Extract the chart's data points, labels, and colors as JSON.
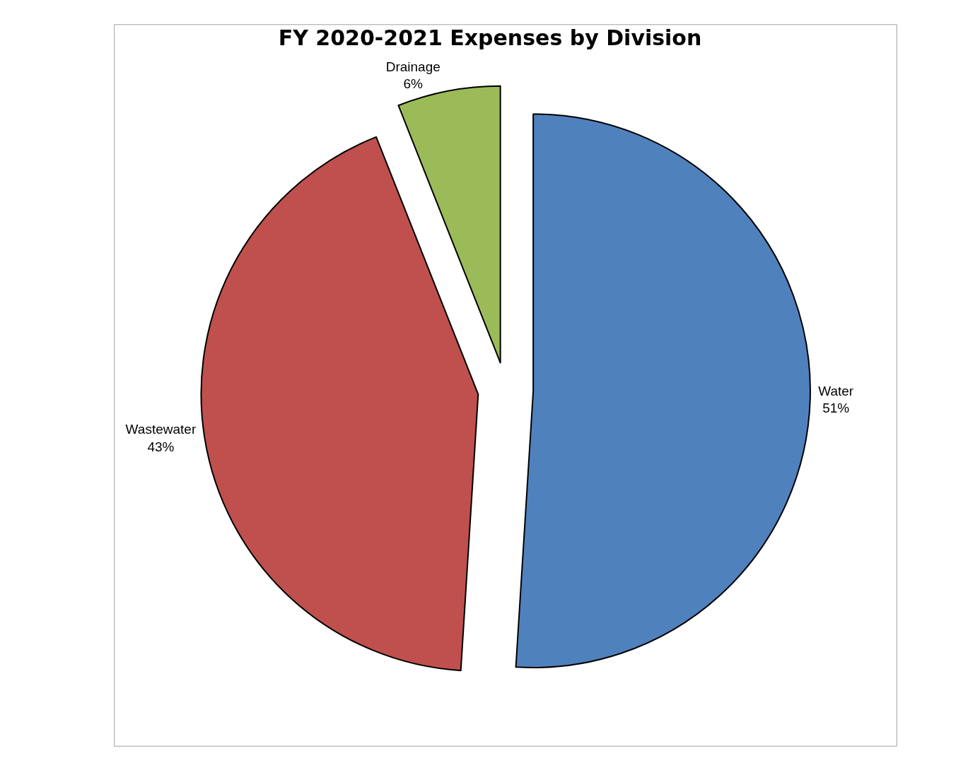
{
  "chart_data": {
    "type": "pie",
    "title": "FY 2020-2021 Expenses by Division",
    "categories": [
      "Water",
      "Wastewater",
      "Drainage"
    ],
    "values": [
      51,
      43,
      6
    ],
    "colors": [
      "#4f81bd",
      "#c0504d",
      "#9bbb59"
    ],
    "value_labels": [
      "51%",
      "43%",
      "6%"
    ],
    "legend": false
  }
}
